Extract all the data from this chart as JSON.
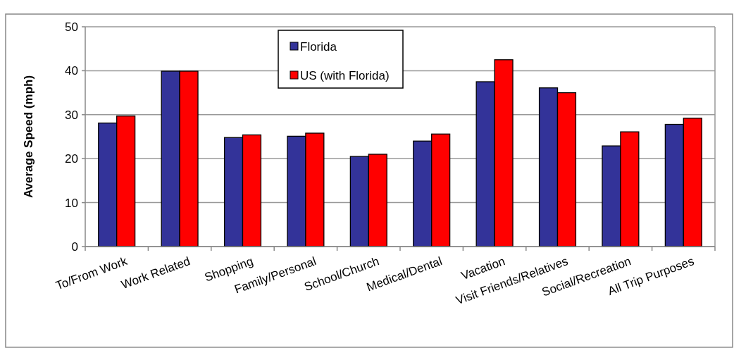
{
  "chart_data": {
    "type": "bar",
    "ylabel": "Average Speed (mph)",
    "categories": [
      "To/From Work",
      "Work Related",
      "Shopping",
      "Family/Personal",
      "School/Church",
      "Medical/Dental",
      "Vacation",
      "Visit Friends/Relatives",
      "Social/Recreation",
      "All Trip Purposes"
    ],
    "series": [
      {
        "name": "Florida",
        "color": "#333399",
        "values": [
          28.1,
          39.9,
          24.8,
          25.1,
          20.5,
          24.0,
          37.5,
          36.1,
          22.9,
          27.8
        ]
      },
      {
        "name": "US (with Florida)",
        "color": "#ff0000",
        "values": [
          29.7,
          39.9,
          25.4,
          25.8,
          21.0,
          25.6,
          42.5,
          35.0,
          26.1,
          29.2
        ]
      }
    ],
    "ylim": [
      0,
      50
    ],
    "yticks": [
      0,
      10,
      20,
      30,
      40,
      50
    ],
    "grid": "y",
    "legend": "top"
  }
}
